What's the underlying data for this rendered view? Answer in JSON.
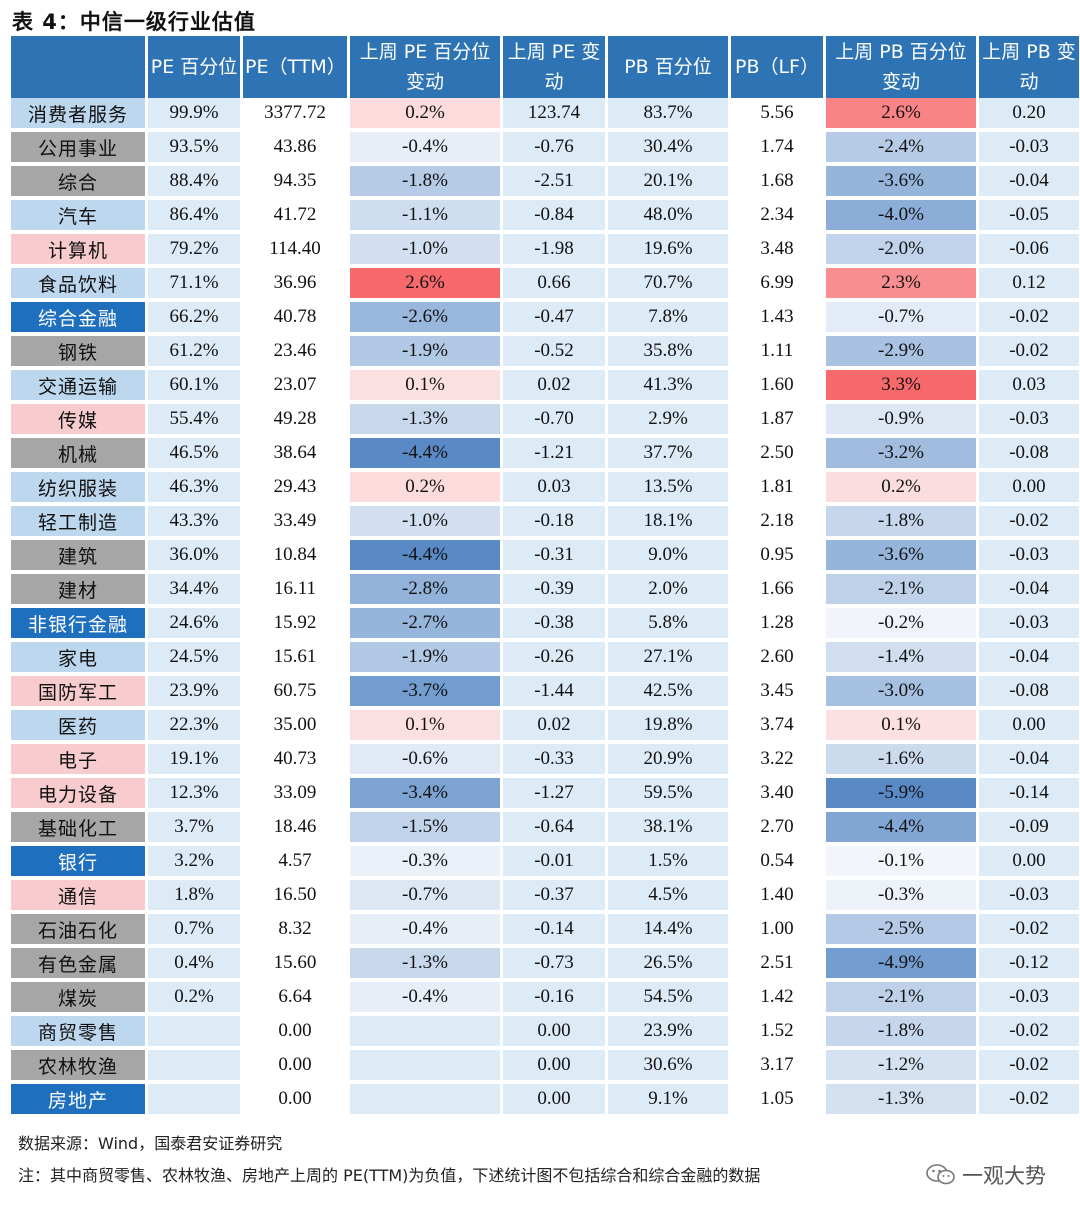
{
  "title": "表 4：中信一级行业估值",
  "headers": [
    "",
    "PE 百分位",
    "PE（TTM）",
    "上周 PE 百分位变动",
    "上周 PE 变动",
    "PB 百分位",
    "PB（LF）",
    "上周 PB 百分位变动",
    "上周 PB 变动"
  ],
  "rows": [
    {
      "name": "消费者服务",
      "c1": "99.9%",
      "c2": "3377.72",
      "c3": "0.2%",
      "c4": "123.74",
      "c5": "83.7%",
      "c6": "5.56",
      "c7": "2.6%",
      "c8": "0.20"
    },
    {
      "name": "公用事业",
      "c1": "93.5%",
      "c2": "43.86",
      "c3": "-0.4%",
      "c4": "-0.76",
      "c5": "30.4%",
      "c6": "1.74",
      "c7": "-2.4%",
      "c8": "-0.03"
    },
    {
      "name": "综合",
      "c1": "88.4%",
      "c2": "94.35",
      "c3": "-1.8%",
      "c4": "-2.51",
      "c5": "20.1%",
      "c6": "1.68",
      "c7": "-3.6%",
      "c8": "-0.04"
    },
    {
      "name": "汽车",
      "c1": "86.4%",
      "c2": "41.72",
      "c3": "-1.1%",
      "c4": "-0.84",
      "c5": "48.0%",
      "c6": "2.34",
      "c7": "-4.0%",
      "c8": "-0.05"
    },
    {
      "name": "计算机",
      "c1": "79.2%",
      "c2": "114.40",
      "c3": "-1.0%",
      "c4": "-1.98",
      "c5": "19.6%",
      "c6": "3.48",
      "c7": "-2.0%",
      "c8": "-0.06"
    },
    {
      "name": "食品饮料",
      "c1": "71.1%",
      "c2": "36.96",
      "c3": "2.6%",
      "c4": "0.66",
      "c5": "70.7%",
      "c6": "6.99",
      "c7": "2.3%",
      "c8": "0.12"
    },
    {
      "name": "综合金融",
      "c1": "66.2%",
      "c2": "40.78",
      "c3": "-2.6%",
      "c4": "-0.47",
      "c5": "7.8%",
      "c6": "1.43",
      "c7": "-0.7%",
      "c8": "-0.02"
    },
    {
      "name": "钢铁",
      "c1": "61.2%",
      "c2": "23.46",
      "c3": "-1.9%",
      "c4": "-0.52",
      "c5": "35.8%",
      "c6": "1.11",
      "c7": "-2.9%",
      "c8": "-0.02"
    },
    {
      "name": "交通运输",
      "c1": "60.1%",
      "c2": "23.07",
      "c3": "0.1%",
      "c4": "0.02",
      "c5": "41.3%",
      "c6": "1.60",
      "c7": "3.3%",
      "c8": "0.03"
    },
    {
      "name": "传媒",
      "c1": "55.4%",
      "c2": "49.28",
      "c3": "-1.3%",
      "c4": "-0.70",
      "c5": "2.9%",
      "c6": "1.87",
      "c7": "-0.9%",
      "c8": "-0.03"
    },
    {
      "name": "机械",
      "c1": "46.5%",
      "c2": "38.64",
      "c3": "-4.4%",
      "c4": "-1.21",
      "c5": "37.7%",
      "c6": "2.50",
      "c7": "-3.2%",
      "c8": "-0.08"
    },
    {
      "name": "纺织服装",
      "c1": "46.3%",
      "c2": "29.43",
      "c3": "0.2%",
      "c4": "0.03",
      "c5": "13.5%",
      "c6": "1.81",
      "c7": "0.2%",
      "c8": "0.00"
    },
    {
      "name": "轻工制造",
      "c1": "43.3%",
      "c2": "33.49",
      "c3": "-1.0%",
      "c4": "-0.18",
      "c5": "18.1%",
      "c6": "2.18",
      "c7": "-1.8%",
      "c8": "-0.02"
    },
    {
      "name": "建筑",
      "c1": "36.0%",
      "c2": "10.84",
      "c3": "-4.4%",
      "c4": "-0.31",
      "c5": "9.0%",
      "c6": "0.95",
      "c7": "-3.6%",
      "c8": "-0.03"
    },
    {
      "name": "建材",
      "c1": "34.4%",
      "c2": "16.11",
      "c3": "-2.8%",
      "c4": "-0.39",
      "c5": "2.0%",
      "c6": "1.66",
      "c7": "-2.1%",
      "c8": "-0.04"
    },
    {
      "name": "非银行金融",
      "c1": "24.6%",
      "c2": "15.92",
      "c3": "-2.7%",
      "c4": "-0.38",
      "c5": "5.8%",
      "c6": "1.28",
      "c7": "-0.2%",
      "c8": "-0.03"
    },
    {
      "name": "家电",
      "c1": "24.5%",
      "c2": "15.61",
      "c3": "-1.9%",
      "c4": "-0.26",
      "c5": "27.1%",
      "c6": "2.60",
      "c7": "-1.4%",
      "c8": "-0.04"
    },
    {
      "name": "国防军工",
      "c1": "23.9%",
      "c2": "60.75",
      "c3": "-3.7%",
      "c4": "-1.44",
      "c5": "42.5%",
      "c6": "3.45",
      "c7": "-3.0%",
      "c8": "-0.08"
    },
    {
      "name": "医药",
      "c1": "22.3%",
      "c2": "35.00",
      "c3": "0.1%",
      "c4": "0.02",
      "c5": "19.8%",
      "c6": "3.74",
      "c7": "0.1%",
      "c8": "0.00"
    },
    {
      "name": "电子",
      "c1": "19.1%",
      "c2": "40.73",
      "c3": "-0.6%",
      "c4": "-0.33",
      "c5": "20.9%",
      "c6": "3.22",
      "c7": "-1.6%",
      "c8": "-0.04"
    },
    {
      "name": "电力设备",
      "c1": "12.3%",
      "c2": "33.09",
      "c3": "-3.4%",
      "c4": "-1.27",
      "c5": "59.5%",
      "c6": "3.40",
      "c7": "-5.9%",
      "c8": "-0.14"
    },
    {
      "name": "基础化工",
      "c1": "3.7%",
      "c2": "18.46",
      "c3": "-1.5%",
      "c4": "-0.64",
      "c5": "38.1%",
      "c6": "2.70",
      "c7": "-4.4%",
      "c8": "-0.09"
    },
    {
      "name": "银行",
      "c1": "3.2%",
      "c2": "4.57",
      "c3": "-0.3%",
      "c4": "-0.01",
      "c5": "1.5%",
      "c6": "0.54",
      "c7": "-0.1%",
      "c8": "0.00"
    },
    {
      "name": "通信",
      "c1": "1.8%",
      "c2": "16.50",
      "c3": "-0.7%",
      "c4": "-0.37",
      "c5": "4.5%",
      "c6": "1.40",
      "c7": "-0.3%",
      "c8": "-0.03"
    },
    {
      "name": "石油石化",
      "c1": "0.7%",
      "c2": "8.32",
      "c3": "-0.4%",
      "c4": "-0.14",
      "c5": "14.4%",
      "c6": "1.00",
      "c7": "-2.5%",
      "c8": "-0.02"
    },
    {
      "name": "有色金属",
      "c1": "0.4%",
      "c2": "15.60",
      "c3": "-1.3%",
      "c4": "-0.73",
      "c5": "26.5%",
      "c6": "2.51",
      "c7": "-4.9%",
      "c8": "-0.12"
    },
    {
      "name": "煤炭",
      "c1": "0.2%",
      "c2": "6.64",
      "c3": "-0.4%",
      "c4": "-0.16",
      "c5": "54.5%",
      "c6": "1.42",
      "c7": "-2.1%",
      "c8": "-0.03"
    },
    {
      "name": "商贸零售",
      "c1": "",
      "c2": "0.00",
      "c3": "",
      "c4": "0.00",
      "c5": "23.9%",
      "c6": "1.52",
      "c7": "-1.8%",
      "c8": "-0.02"
    },
    {
      "name": "农林牧渔",
      "c1": "",
      "c2": "0.00",
      "c3": "",
      "c4": "0.00",
      "c5": "30.6%",
      "c6": "3.17",
      "c7": "-1.2%",
      "c8": "-0.02"
    },
    {
      "name": "房地产",
      "c1": "",
      "c2": "0.00",
      "c3": "",
      "c4": "0.00",
      "c5": "9.1%",
      "c6": "1.05",
      "c7": "-1.3%",
      "c8": "-0.02"
    }
  ],
  "colors": {
    "header": "#2e74b5",
    "name_light_blue": "#bdd7ee",
    "name_gray": "#a6a6a6",
    "name_pink": "#f8cbcf",
    "name_dark_blue": "#1f6fbf",
    "col_light_blue": "#ddebf7",
    "pos_max": "#f8696b",
    "neg_max": "#5a8ac6"
  },
  "name_styles": [
    "lb",
    "gray",
    "gray",
    "lb",
    "pink",
    "lb",
    "db",
    "gray",
    "lb",
    "pink",
    "gray",
    "lb",
    "lb",
    "gray",
    "gray",
    "db",
    "lb",
    "pink",
    "lb",
    "pink",
    "pink",
    "gray",
    "db",
    "pink",
    "gray",
    "gray",
    "gray",
    "lb",
    "gray",
    "db"
  ],
  "source_note": "数据来源：Wind，国泰君安证券研究",
  "footnote": "注：其中商贸零售、农林牧渔、房地产上周的 PE(TTM)为负值，下述统计图不包括综合和综合金融的数据",
  "watermark": "一观大势"
}
